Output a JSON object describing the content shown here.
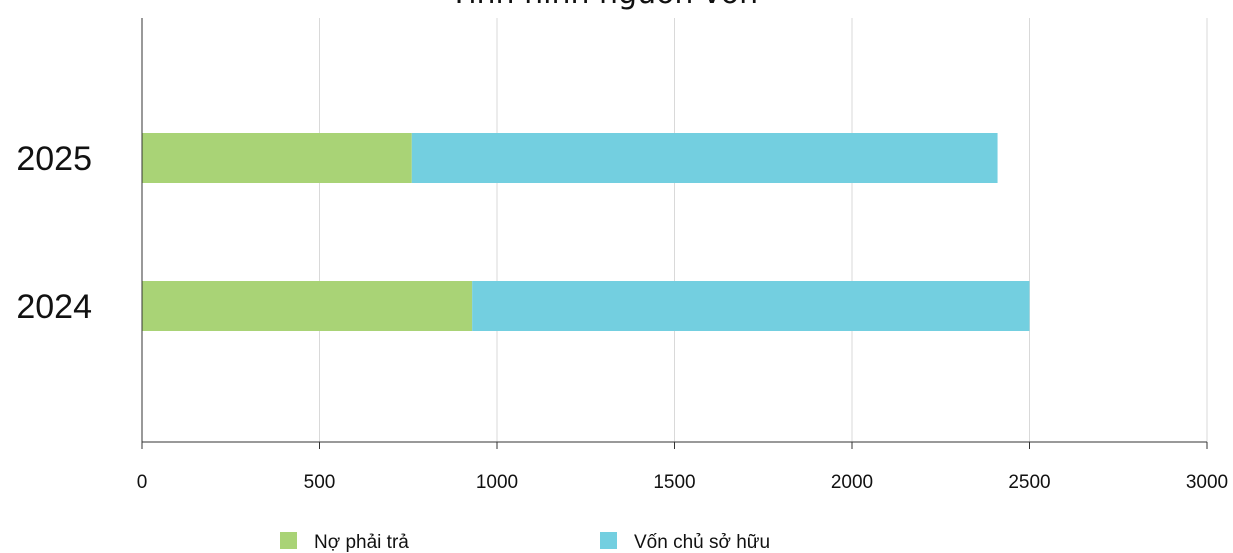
{
  "chart_data": {
    "type": "bar",
    "orientation": "horizontal",
    "stacked": true,
    "title": "Tình hình nguồn vốn",
    "categories": [
      "2025",
      "2024"
    ],
    "series": [
      {
        "name": "Nợ phải trả",
        "color": "#a9d376",
        "values": [
          760,
          930
        ]
      },
      {
        "name": "Vốn chủ sở hữu",
        "color": "#73cfe0",
        "values": [
          1650,
          1570
        ]
      }
    ],
    "xlim": [
      0,
      3000
    ],
    "xticks": [
      0,
      500,
      1000,
      1500,
      2000,
      2500,
      3000
    ],
    "xtick_labels": [
      "0",
      "500",
      "1000",
      "1500",
      "2000",
      "2500",
      "3000"
    ],
    "grid": true,
    "legend_position": "bottom"
  }
}
